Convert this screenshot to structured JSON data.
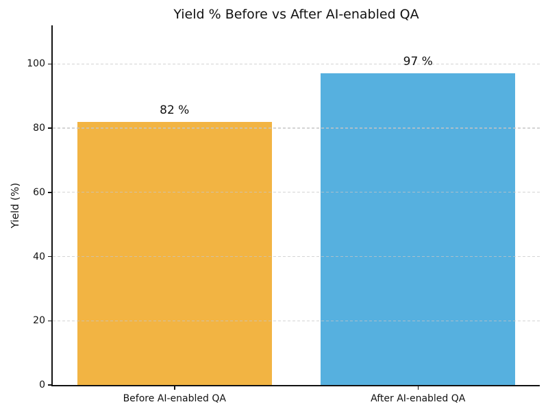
{
  "chart_data": {
    "type": "bar",
    "title": "Yield % Before vs After AI-enabled QA",
    "xlabel": "",
    "ylabel": "Yield (%)",
    "categories": [
      "Before AI-enabled QA",
      "After AI-enabled QA"
    ],
    "values": [
      82,
      97
    ],
    "value_labels": [
      "82 %",
      "97 %"
    ],
    "bar_colors": [
      "#F2B443",
      "#56B0DF"
    ],
    "bar_width_fraction": 0.8,
    "ylim": [
      0,
      112
    ],
    "yticks": [
      0,
      20,
      40,
      60,
      80,
      100
    ],
    "ytick_labels": [
      "0",
      "20",
      "40",
      "60",
      "80",
      "100"
    ],
    "grid": "horizontal-dashed",
    "grid_color": "#c9c9c9",
    "axis_color": "#111111",
    "text_color": "#111111",
    "background": "#ffffff",
    "legend": "none"
  }
}
